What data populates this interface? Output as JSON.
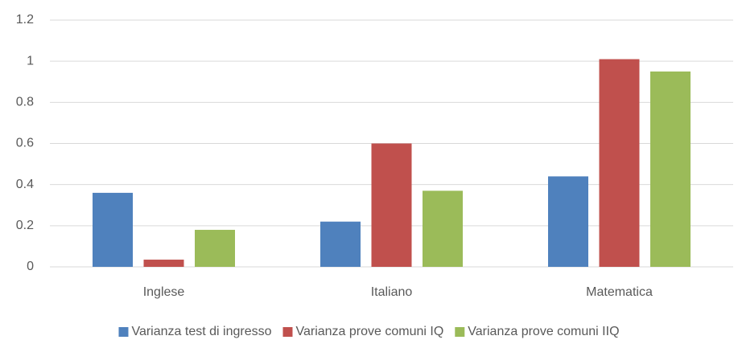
{
  "chart_data": {
    "type": "bar",
    "categories": [
      "Inglese",
      "Italiano",
      "Matematica"
    ],
    "series": [
      {
        "name": "Varianza test di ingresso",
        "color": "#4f81bd",
        "values": [
          0.36,
          0.22,
          0.44
        ]
      },
      {
        "name": "Varianza prove comuni IQ",
        "color": "#c0504d",
        "values": [
          0.035,
          0.6,
          1.01
        ]
      },
      {
        "name": "Varianza prove comuni IIQ",
        "color": "#9bbb59",
        "values": [
          0.18,
          0.37,
          0.95
        ]
      }
    ],
    "ylim": [
      0,
      1.2
    ],
    "yticks": [
      0,
      0.2,
      0.4,
      0.6,
      0.8,
      1,
      1.2
    ],
    "grid": true,
    "legend": "bottom"
  }
}
